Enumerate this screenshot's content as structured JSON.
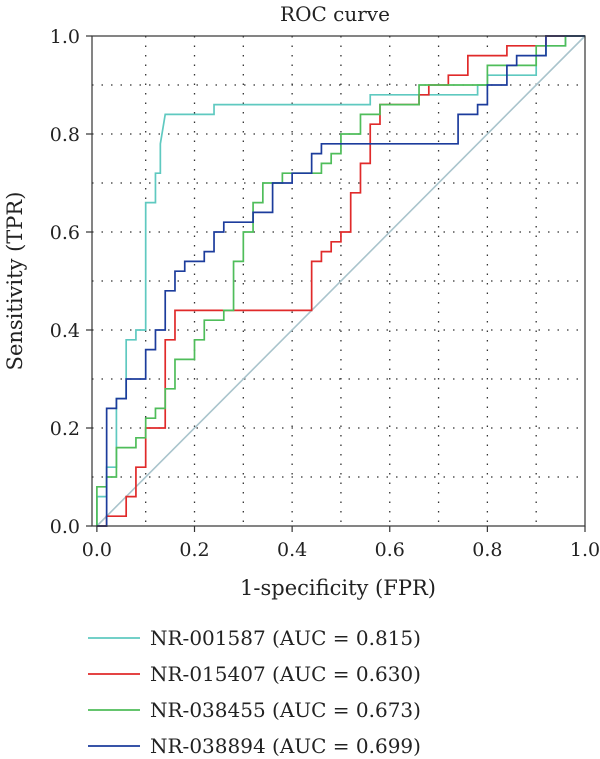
{
  "chart_data": {
    "type": "line",
    "title": "ROC curve",
    "xlabel": "1-specificity (FPR)",
    "ylabel": "Sensitivity (TPR)",
    "xlim": [
      0,
      1
    ],
    "ylim": [
      0,
      1
    ],
    "xticks": [
      "0.0",
      "0.2",
      "0.4",
      "0.6",
      "0.8",
      "1.0"
    ],
    "yticks": [
      "0.0",
      "0.2",
      "0.4",
      "0.6",
      "0.8",
      "1.0"
    ],
    "grid": true,
    "legend_position": "bottom",
    "reference_line": {
      "color": "#a9c4cc",
      "points": [
        [
          0,
          0
        ],
        [
          1,
          1
        ]
      ]
    },
    "series": [
      {
        "name": "NR-001587 (AUC = 0.815)",
        "color": "#5fc9c0",
        "points": [
          [
            0,
            0
          ],
          [
            0,
            0.06
          ],
          [
            0.02,
            0.06
          ],
          [
            0.02,
            0.12
          ],
          [
            0.04,
            0.12
          ],
          [
            0.04,
            0.2
          ],
          [
            0.04,
            0.26
          ],
          [
            0.06,
            0.26
          ],
          [
            0.06,
            0.38
          ],
          [
            0.08,
            0.38
          ],
          [
            0.08,
            0.4
          ],
          [
            0.1,
            0.4
          ],
          [
            0.1,
            0.66
          ],
          [
            0.12,
            0.66
          ],
          [
            0.12,
            0.72
          ],
          [
            0.13,
            0.72
          ],
          [
            0.13,
            0.78
          ],
          [
            0.14,
            0.84
          ],
          [
            0.24,
            0.84
          ],
          [
            0.24,
            0.86
          ],
          [
            0.56,
            0.86
          ],
          [
            0.56,
            0.88
          ],
          [
            0.78,
            0.88
          ],
          [
            0.78,
            0.9
          ],
          [
            0.8,
            0.9
          ],
          [
            0.8,
            0.92
          ],
          [
            0.9,
            0.92
          ],
          [
            0.9,
            0.96
          ],
          [
            0.92,
            0.96
          ],
          [
            0.92,
            0.98
          ],
          [
            0.96,
            0.98
          ],
          [
            0.96,
            1.0
          ],
          [
            1.0,
            1.0
          ]
        ]
      },
      {
        "name": "NR-015407 (AUC = 0.630)",
        "color": "#e02a2a",
        "points": [
          [
            0,
            0
          ],
          [
            0.02,
            0
          ],
          [
            0.02,
            0.02
          ],
          [
            0.06,
            0.02
          ],
          [
            0.06,
            0.06
          ],
          [
            0.08,
            0.06
          ],
          [
            0.08,
            0.12
          ],
          [
            0.1,
            0.12
          ],
          [
            0.1,
            0.2
          ],
          [
            0.14,
            0.2
          ],
          [
            0.14,
            0.38
          ],
          [
            0.16,
            0.38
          ],
          [
            0.16,
            0.44
          ],
          [
            0.44,
            0.44
          ],
          [
            0.44,
            0.54
          ],
          [
            0.46,
            0.54
          ],
          [
            0.46,
            0.56
          ],
          [
            0.48,
            0.56
          ],
          [
            0.48,
            0.58
          ],
          [
            0.5,
            0.58
          ],
          [
            0.5,
            0.6
          ],
          [
            0.52,
            0.6
          ],
          [
            0.52,
            0.68
          ],
          [
            0.54,
            0.68
          ],
          [
            0.54,
            0.74
          ],
          [
            0.56,
            0.74
          ],
          [
            0.56,
            0.82
          ],
          [
            0.58,
            0.82
          ],
          [
            0.58,
            0.86
          ],
          [
            0.66,
            0.86
          ],
          [
            0.66,
            0.88
          ],
          [
            0.68,
            0.88
          ],
          [
            0.68,
            0.9
          ],
          [
            0.72,
            0.9
          ],
          [
            0.72,
            0.92
          ],
          [
            0.76,
            0.92
          ],
          [
            0.76,
            0.96
          ],
          [
            0.84,
            0.96
          ],
          [
            0.84,
            0.98
          ],
          [
            0.92,
            0.98
          ],
          [
            0.92,
            1.0
          ],
          [
            1.0,
            1.0
          ]
        ]
      },
      {
        "name": "NR-038455 (AUC = 0.673)",
        "color": "#4fbd5a",
        "points": [
          [
            0,
            0
          ],
          [
            0,
            0.08
          ],
          [
            0.02,
            0.08
          ],
          [
            0.02,
            0.1
          ],
          [
            0.04,
            0.1
          ],
          [
            0.04,
            0.16
          ],
          [
            0.08,
            0.16
          ],
          [
            0.08,
            0.18
          ],
          [
            0.1,
            0.18
          ],
          [
            0.1,
            0.22
          ],
          [
            0.12,
            0.22
          ],
          [
            0.12,
            0.24
          ],
          [
            0.14,
            0.24
          ],
          [
            0.14,
            0.28
          ],
          [
            0.16,
            0.28
          ],
          [
            0.16,
            0.34
          ],
          [
            0.2,
            0.34
          ],
          [
            0.2,
            0.38
          ],
          [
            0.22,
            0.38
          ],
          [
            0.22,
            0.42
          ],
          [
            0.26,
            0.42
          ],
          [
            0.26,
            0.44
          ],
          [
            0.28,
            0.44
          ],
          [
            0.28,
            0.54
          ],
          [
            0.3,
            0.54
          ],
          [
            0.3,
            0.6
          ],
          [
            0.32,
            0.6
          ],
          [
            0.32,
            0.66
          ],
          [
            0.34,
            0.66
          ],
          [
            0.34,
            0.7
          ],
          [
            0.38,
            0.7
          ],
          [
            0.38,
            0.72
          ],
          [
            0.46,
            0.72
          ],
          [
            0.46,
            0.74
          ],
          [
            0.48,
            0.74
          ],
          [
            0.48,
            0.76
          ],
          [
            0.5,
            0.76
          ],
          [
            0.5,
            0.8
          ],
          [
            0.54,
            0.8
          ],
          [
            0.54,
            0.84
          ],
          [
            0.58,
            0.84
          ],
          [
            0.58,
            0.86
          ],
          [
            0.66,
            0.86
          ],
          [
            0.66,
            0.9
          ],
          [
            0.8,
            0.9
          ],
          [
            0.8,
            0.94
          ],
          [
            0.9,
            0.94
          ],
          [
            0.9,
            0.98
          ],
          [
            0.96,
            0.98
          ],
          [
            0.96,
            1.0
          ],
          [
            1.0,
            1.0
          ]
        ]
      },
      {
        "name": "NR-038894 (AUC = 0.699)",
        "color": "#1c3c9c",
        "points": [
          [
            0,
            0
          ],
          [
            0.02,
            0
          ],
          [
            0.02,
            0.24
          ],
          [
            0.04,
            0.24
          ],
          [
            0.04,
            0.26
          ],
          [
            0.06,
            0.26
          ],
          [
            0.06,
            0.3
          ],
          [
            0.1,
            0.3
          ],
          [
            0.1,
            0.36
          ],
          [
            0.12,
            0.36
          ],
          [
            0.12,
            0.4
          ],
          [
            0.14,
            0.4
          ],
          [
            0.14,
            0.48
          ],
          [
            0.16,
            0.48
          ],
          [
            0.16,
            0.52
          ],
          [
            0.18,
            0.52
          ],
          [
            0.18,
            0.54
          ],
          [
            0.22,
            0.54
          ],
          [
            0.22,
            0.56
          ],
          [
            0.24,
            0.56
          ],
          [
            0.24,
            0.6
          ],
          [
            0.26,
            0.6
          ],
          [
            0.26,
            0.62
          ],
          [
            0.32,
            0.62
          ],
          [
            0.32,
            0.64
          ],
          [
            0.36,
            0.64
          ],
          [
            0.36,
            0.7
          ],
          [
            0.4,
            0.7
          ],
          [
            0.4,
            0.72
          ],
          [
            0.44,
            0.72
          ],
          [
            0.44,
            0.76
          ],
          [
            0.46,
            0.76
          ],
          [
            0.46,
            0.78
          ],
          [
            0.74,
            0.78
          ],
          [
            0.74,
            0.84
          ],
          [
            0.78,
            0.84
          ],
          [
            0.78,
            0.86
          ],
          [
            0.8,
            0.86
          ],
          [
            0.8,
            0.9
          ],
          [
            0.84,
            0.9
          ],
          [
            0.84,
            0.94
          ],
          [
            0.86,
            0.94
          ],
          [
            0.86,
            0.96
          ],
          [
            0.92,
            0.96
          ],
          [
            0.92,
            1.0
          ],
          [
            1.0,
            1.0
          ]
        ]
      }
    ]
  }
}
